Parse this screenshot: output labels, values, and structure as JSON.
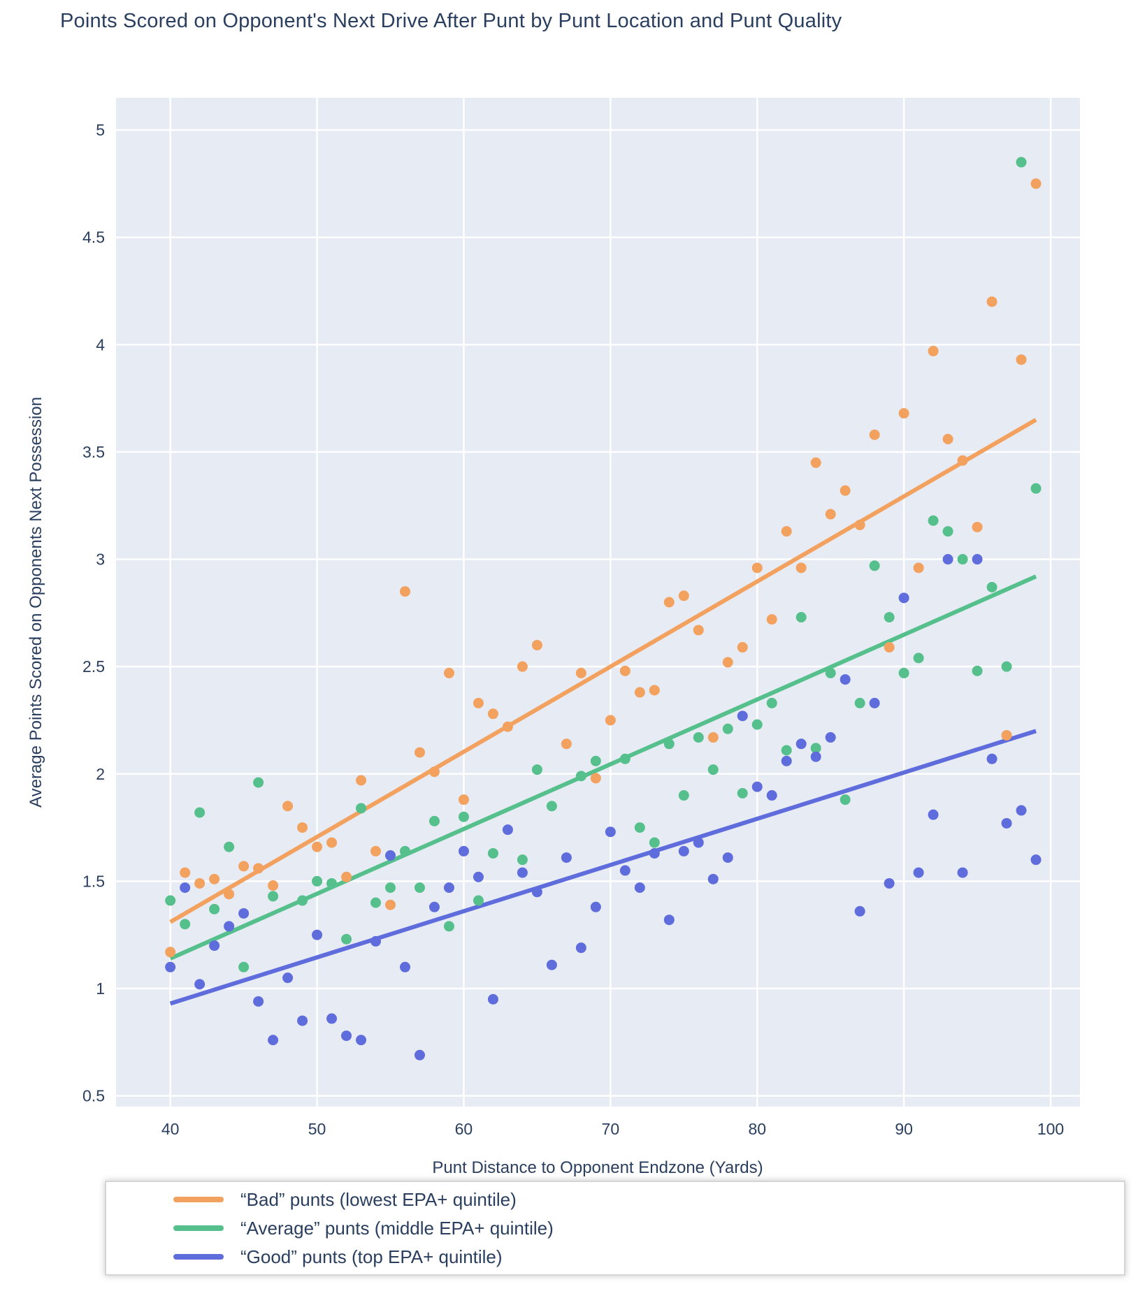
{
  "chart_data": {
    "type": "scatter",
    "title": "Points Scored on Opponent's Next Drive After Punt by Punt Location and Punt Quality",
    "xlabel": "Punt Distance to Opponent Endzone (Yards)",
    "ylabel": "Average Points Scored on Opponents Next Possession",
    "xlim": [
      36.3,
      102.0
    ],
    "ylim": [
      0.45,
      5.15
    ],
    "xticks": [
      40,
      50,
      60,
      70,
      80,
      90,
      100
    ],
    "yticks": [
      0.5,
      1,
      1.5,
      2,
      2.5,
      3,
      3.5,
      4,
      4.5,
      5
    ],
    "grid": true,
    "legend_position": "bottom-left",
    "colors": {
      "plot_background": "#E7EBF4",
      "gridline": "#FFFFFF",
      "text": "#2A3F5F",
      "paper": "#FFFFFF",
      "legend_border": "#D5D5D5"
    },
    "series": [
      {
        "id": "bad",
        "name": "“Bad” punts (lowest EPA+ quintile)",
        "color": "#F2A15F",
        "trend": {
          "x": [
            40,
            99
          ],
          "y": [
            1.31,
            3.65
          ]
        },
        "points": [
          [
            40,
            1.17
          ],
          [
            41,
            1.54
          ],
          [
            42,
            1.49
          ],
          [
            43,
            1.51
          ],
          [
            44,
            1.44
          ],
          [
            45,
            1.57
          ],
          [
            46,
            1.56
          ],
          [
            47,
            1.48
          ],
          [
            48,
            1.85
          ],
          [
            49,
            1.75
          ],
          [
            50,
            1.66
          ],
          [
            51,
            1.68
          ],
          [
            52,
            1.52
          ],
          [
            53,
            1.97
          ],
          [
            54,
            1.64
          ],
          [
            55,
            1.39
          ],
          [
            56,
            2.85
          ],
          [
            57,
            2.1
          ],
          [
            58,
            2.01
          ],
          [
            59,
            2.47
          ],
          [
            60,
            1.88
          ],
          [
            61,
            2.33
          ],
          [
            62,
            2.28
          ],
          [
            63,
            2.22
          ],
          [
            64,
            2.5
          ],
          [
            65,
            2.6
          ],
          [
            67,
            2.14
          ],
          [
            68,
            2.47
          ],
          [
            69,
            1.98
          ],
          [
            70,
            2.25
          ],
          [
            71,
            2.48
          ],
          [
            72,
            2.38
          ],
          [
            73,
            2.39
          ],
          [
            74,
            2.8
          ],
          [
            75,
            2.83
          ],
          [
            76,
            2.67
          ],
          [
            77,
            2.17
          ],
          [
            78,
            2.52
          ],
          [
            79,
            2.59
          ],
          [
            80,
            2.96
          ],
          [
            81,
            2.72
          ],
          [
            82,
            3.13
          ],
          [
            83,
            2.96
          ],
          [
            84,
            3.45
          ],
          [
            85,
            3.21
          ],
          [
            86,
            3.32
          ],
          [
            87,
            3.16
          ],
          [
            88,
            3.58
          ],
          [
            89,
            2.59
          ],
          [
            90,
            3.68
          ],
          [
            91,
            2.96
          ],
          [
            92,
            3.97
          ],
          [
            93,
            3.56
          ],
          [
            94,
            3.46
          ],
          [
            95,
            3.15
          ],
          [
            96,
            4.2
          ],
          [
            97,
            2.18
          ],
          [
            98,
            3.93
          ],
          [
            99,
            4.75
          ]
        ]
      },
      {
        "id": "average",
        "name": "“Average” punts (middle EPA+ quintile)",
        "color": "#55C08C",
        "trend": {
          "x": [
            40,
            99
          ],
          "y": [
            1.14,
            2.92
          ]
        },
        "points": [
          [
            40,
            1.41
          ],
          [
            41,
            1.3
          ],
          [
            42,
            1.82
          ],
          [
            43,
            1.37
          ],
          [
            44,
            1.66
          ],
          [
            45,
            1.1
          ],
          [
            46,
            1.96
          ],
          [
            47,
            1.43
          ],
          [
            49,
            1.41
          ],
          [
            50,
            1.5
          ],
          [
            51,
            1.49
          ],
          [
            52,
            1.23
          ],
          [
            53,
            1.84
          ],
          [
            54,
            1.4
          ],
          [
            55,
            1.47
          ],
          [
            56,
            1.64
          ],
          [
            57,
            1.47
          ],
          [
            58,
            1.78
          ],
          [
            59,
            1.29
          ],
          [
            60,
            1.8
          ],
          [
            61,
            1.41
          ],
          [
            62,
            1.63
          ],
          [
            64,
            1.6
          ],
          [
            65,
            2.02
          ],
          [
            66,
            1.85
          ],
          [
            68,
            1.99
          ],
          [
            69,
            2.06
          ],
          [
            71,
            2.07
          ],
          [
            72,
            1.75
          ],
          [
            73,
            1.68
          ],
          [
            74,
            2.14
          ],
          [
            75,
            1.9
          ],
          [
            76,
            2.17
          ],
          [
            77,
            2.02
          ],
          [
            78,
            2.21
          ],
          [
            79,
            1.91
          ],
          [
            80,
            2.23
          ],
          [
            81,
            2.33
          ],
          [
            82,
            2.11
          ],
          [
            83,
            2.73
          ],
          [
            84,
            2.12
          ],
          [
            85,
            2.47
          ],
          [
            86,
            1.88
          ],
          [
            87,
            2.33
          ],
          [
            88,
            2.97
          ],
          [
            89,
            2.73
          ],
          [
            90,
            2.47
          ],
          [
            91,
            2.54
          ],
          [
            92,
            3.18
          ],
          [
            93,
            3.13
          ],
          [
            94,
            3.0
          ],
          [
            95,
            2.48
          ],
          [
            96,
            2.87
          ],
          [
            97,
            2.5
          ],
          [
            98,
            4.85
          ],
          [
            99,
            3.33
          ]
        ]
      },
      {
        "id": "good",
        "name": "“Good” punts (top EPA+ quintile)",
        "color": "#5F6CDC",
        "trend": {
          "x": [
            40,
            99
          ],
          "y": [
            0.93,
            2.2
          ]
        },
        "points": [
          [
            40,
            1.1
          ],
          [
            41,
            1.47
          ],
          [
            42,
            1.02
          ],
          [
            43,
            1.2
          ],
          [
            44,
            1.29
          ],
          [
            45,
            1.35
          ],
          [
            46,
            0.94
          ],
          [
            47,
            0.76
          ],
          [
            48,
            1.05
          ],
          [
            49,
            0.85
          ],
          [
            50,
            1.25
          ],
          [
            51,
            0.86
          ],
          [
            52,
            0.78
          ],
          [
            53,
            0.76
          ],
          [
            54,
            1.22
          ],
          [
            55,
            1.62
          ],
          [
            56,
            1.1
          ],
          [
            57,
            0.69
          ],
          [
            58,
            1.38
          ],
          [
            59,
            1.47
          ],
          [
            60,
            1.64
          ],
          [
            61,
            1.52
          ],
          [
            62,
            0.95
          ],
          [
            63,
            1.74
          ],
          [
            64,
            1.54
          ],
          [
            65,
            1.45
          ],
          [
            66,
            1.11
          ],
          [
            67,
            1.61
          ],
          [
            68,
            1.19
          ],
          [
            69,
            1.38
          ],
          [
            70,
            1.73
          ],
          [
            71,
            1.55
          ],
          [
            72,
            1.47
          ],
          [
            73,
            1.63
          ],
          [
            74,
            1.32
          ],
          [
            75,
            1.64
          ],
          [
            76,
            1.68
          ],
          [
            77,
            1.51
          ],
          [
            78,
            1.61
          ],
          [
            79,
            2.27
          ],
          [
            80,
            1.94
          ],
          [
            81,
            1.9
          ],
          [
            82,
            2.06
          ],
          [
            83,
            2.14
          ],
          [
            84,
            2.08
          ],
          [
            85,
            2.17
          ],
          [
            86,
            2.44
          ],
          [
            87,
            1.36
          ],
          [
            88,
            2.33
          ],
          [
            89,
            1.49
          ],
          [
            90,
            2.82
          ],
          [
            91,
            1.54
          ],
          [
            92,
            1.81
          ],
          [
            93,
            3.0
          ],
          [
            94,
            1.54
          ],
          [
            95,
            3.0
          ],
          [
            96,
            2.07
          ],
          [
            97,
            1.77
          ],
          [
            98,
            1.83
          ],
          [
            99,
            1.6
          ]
        ]
      }
    ]
  }
}
